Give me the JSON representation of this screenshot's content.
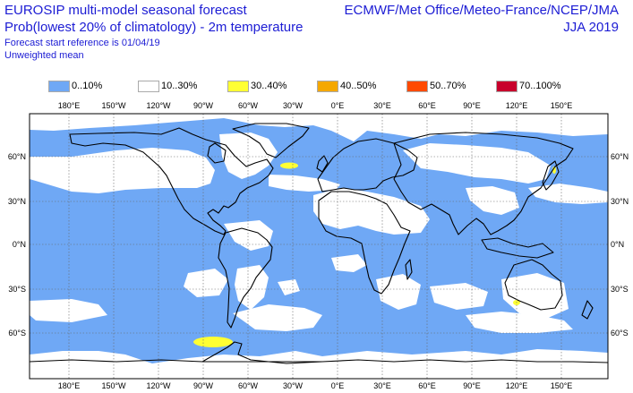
{
  "header": {
    "title_line1": "EUROSIP multi-model seasonal forecast",
    "title_line2": "Prob(lowest 20% of climatology) - 2m temperature",
    "start_reference": "Forecast start reference is 01/04/19",
    "weighting": "Unweighted mean",
    "centres": "ECMWF/Met Office/Meteo-France/NCEP/JMA",
    "season": "JJA 2019"
  },
  "legend": [
    {
      "label": "0..10%",
      "color": "#6fa8f5"
    },
    {
      "label": "10..30%",
      "color": "#ffffff"
    },
    {
      "label": "30..40%",
      "color": "#ffff33"
    },
    {
      "label": "40..50%",
      "color": "#f5a800"
    },
    {
      "label": "50..70%",
      "color": "#ff4a00"
    },
    {
      "label": "70..100%",
      "color": "#c8002c"
    }
  ],
  "map": {
    "top_lon_labels": [
      "180°E",
      "150°W",
      "120°W",
      "90°W",
      "60°W",
      "30°W",
      "0°E",
      "30°E",
      "60°E",
      "90°E",
      "120°E",
      "150°E"
    ],
    "bottom_lon_labels": [
      "180°E",
      "150°W",
      "120°W",
      "90°W",
      "60°W",
      "30°W",
      "0°E",
      "30°E",
      "60°E",
      "90°E",
      "120°E",
      "150°E"
    ],
    "lat_labels": [
      "60°N",
      "30°N",
      "0°N",
      "30°S",
      "60°S"
    ]
  }
}
